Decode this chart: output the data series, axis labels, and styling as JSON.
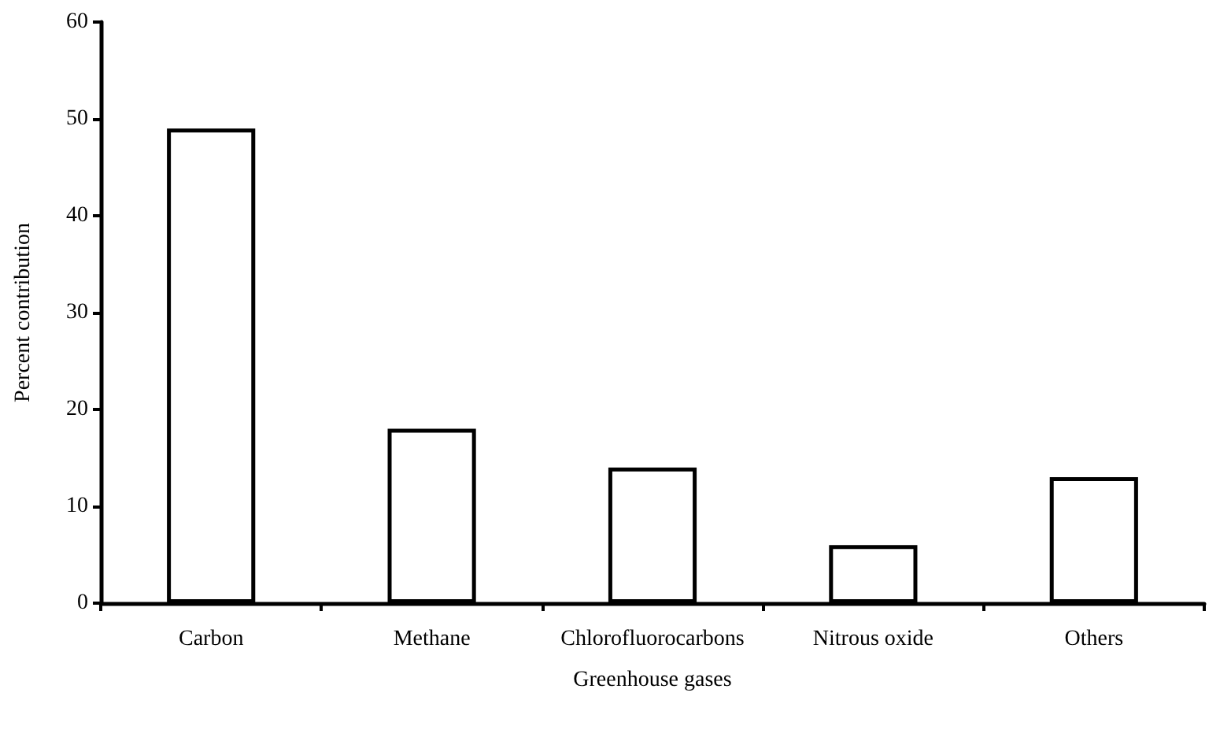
{
  "chart_data": {
    "type": "bar",
    "xlabel": "Greenhouse gases",
    "ylabel": "Percent contribution",
    "categories": [
      "Carbon",
      "Methane",
      "Chlorofluorocarbons",
      "Nitrous oxide",
      "Others"
    ],
    "values": [
      49,
      18,
      14,
      6,
      13
    ],
    "color": "#ffffff",
    "ylim": [
      0,
      60
    ],
    "yticks": [
      0,
      10,
      20,
      30,
      40,
      50,
      60
    ],
    "grid": false
  }
}
